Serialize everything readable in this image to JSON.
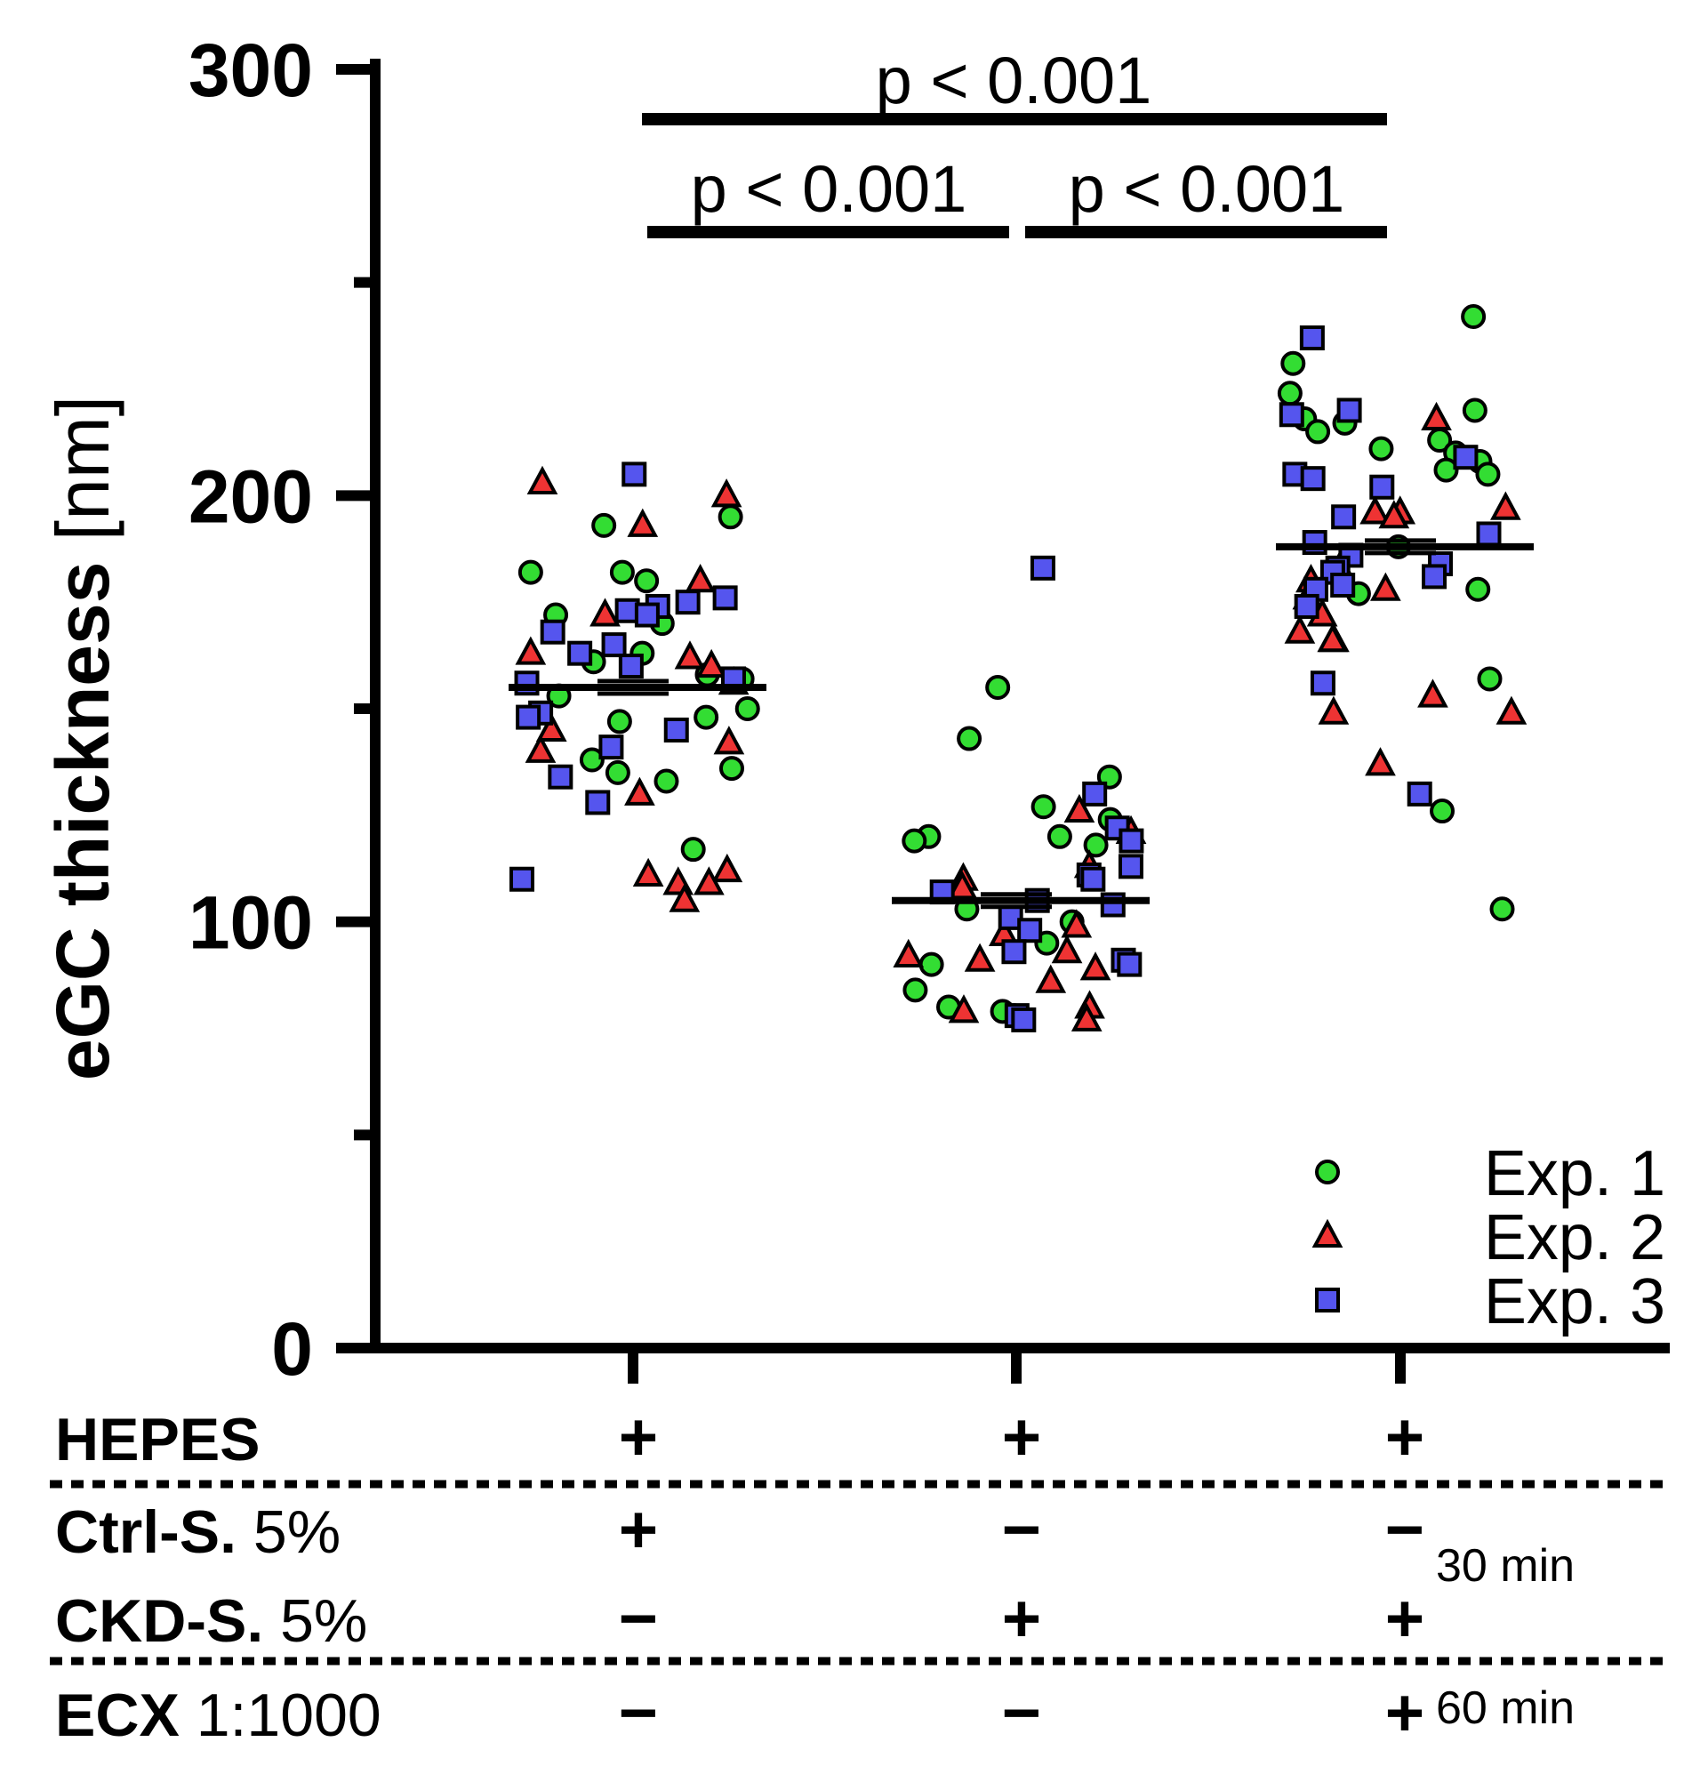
{
  "chart_data": {
    "type": "scatter",
    "ylabel": "eGC thickness [nm]",
    "ylim": [
      0,
      300
    ],
    "yticks": [
      "0",
      "100",
      "200",
      "300"
    ],
    "minor_ticks": [
      50,
      150,
      250
    ],
    "groups": [
      {
        "name": "Ctrl-S.",
        "mean": 155
      },
      {
        "name": "CKD-S.",
        "mean": 105
      },
      {
        "name": "CKD-S. + ECX",
        "mean": 188
      }
    ],
    "series": [
      {
        "name": "Exp. 1",
        "marker": "circle",
        "color": "#33dd33",
        "values": [
          [
            195,
            182,
            180,
            193,
            182,
            170,
            172,
            161,
            163,
            157,
            158,
            153,
            150,
            148,
            147,
            136,
            135,
            133,
            138,
            117
          ],
          [
            155,
            143,
            134,
            127,
            124,
            120,
            120,
            118,
            119,
            103,
            100,
            95,
            90,
            84,
            80,
            78,
            79
          ],
          [
            242,
            231,
            224,
            220,
            218,
            217,
            215,
            213,
            211,
            210,
            208,
            206,
            205,
            188,
            178,
            177,
            157,
            126,
            103
          ]
        ]
      },
      {
        "name": "Exp. 2",
        "marker": "triangle",
        "color": "#ee3333",
        "values": [
          [
            203,
            200,
            193,
            180,
            172,
            162,
            163,
            160,
            156,
            145,
            142,
            140,
            130,
            112,
            111,
            109,
            109,
            105
          ],
          [
            126,
            121,
            113,
            110,
            108,
            99,
            97,
            93,
            92,
            91,
            89,
            86,
            80,
            79,
            77
          ],
          [
            218,
            197,
            196,
            196,
            195,
            183,
            180,
            178,
            176,
            172,
            168,
            166,
            166,
            153,
            149,
            149,
            137
          ]
        ]
      },
      {
        "name": "Exp. 3",
        "marker": "square",
        "color": "#5555ee",
        "values": [
          [
            205,
            176,
            175,
            174,
            173,
            172,
            168,
            165,
            163,
            160,
            157,
            156,
            149,
            148,
            145,
            141,
            134,
            128,
            110
          ],
          [
            183,
            130,
            122,
            119,
            113,
            111,
            110,
            107,
            105,
            104,
            101,
            98,
            93,
            91,
            90,
            78,
            77
          ],
          [
            237,
            220,
            219,
            209,
            205,
            204,
            202,
            195,
            191,
            189,
            186,
            184,
            183,
            182,
            181,
            179,
            178,
            174,
            156,
            130
          ]
        ]
      }
    ],
    "significance": [
      {
        "label": "p < 0.001",
        "from": 0,
        "to": 2
      },
      {
        "label": "p < 0.001",
        "from": 0,
        "to": 1
      },
      {
        "label": "p < 0.001",
        "from": 1,
        "to": 2
      }
    ],
    "conditions": [
      {
        "name": "HEPES",
        "conc": "",
        "values": [
          "+",
          "+",
          "+"
        ]
      },
      {
        "name": "Ctrl-S.",
        "conc": "5%",
        "values": [
          "+",
          "−",
          "−"
        ]
      },
      {
        "name": "CKD-S.",
        "conc": "5%",
        "values": [
          "−",
          "+",
          "+"
        ]
      },
      {
        "name": "ECX",
        "conc": "1:1000",
        "values": [
          "−",
          "−",
          "+"
        ]
      }
    ],
    "durations": [
      "30 min",
      "60 min"
    ],
    "legend_position": "bottom-right"
  }
}
